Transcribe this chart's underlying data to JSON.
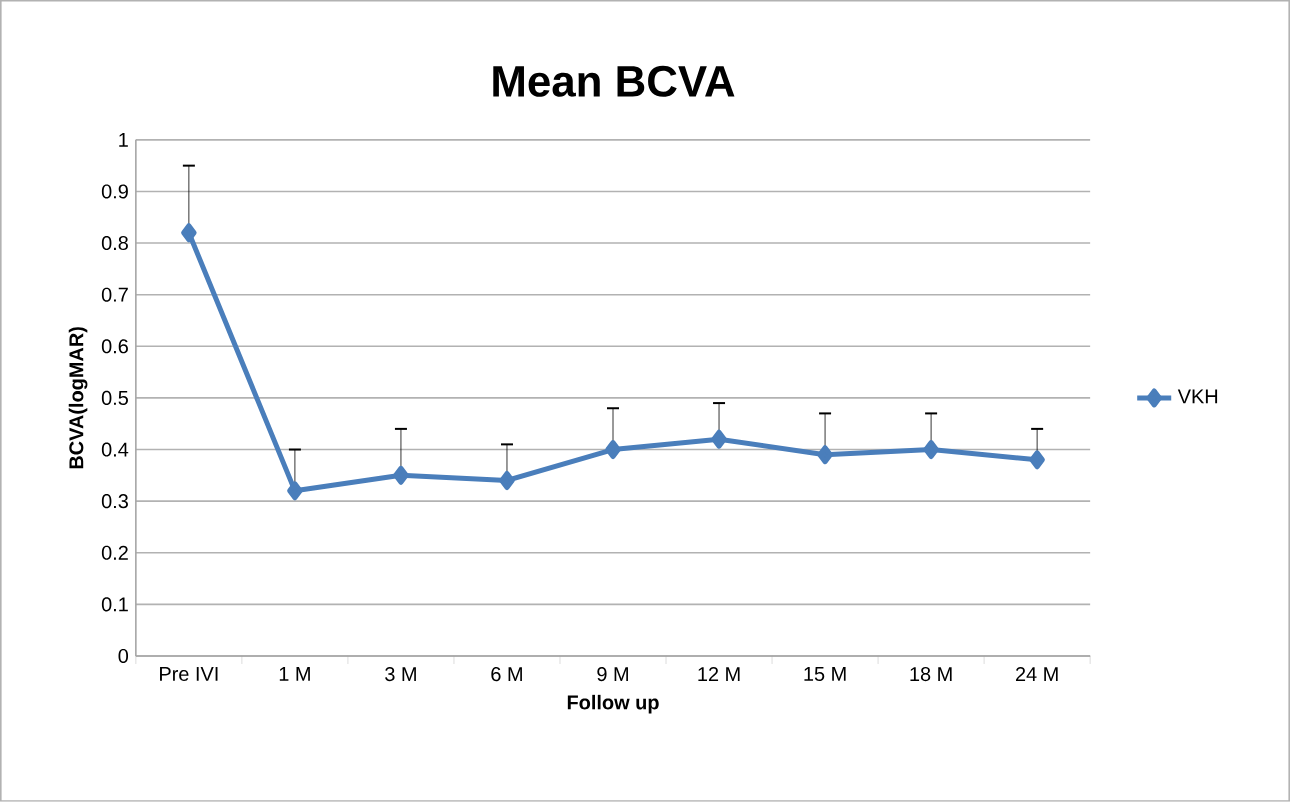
{
  "chart_data": {
    "type": "line",
    "title": "Mean BCVA",
    "xlabel": "Follow up",
    "ylabel": "BCVA(logMAR)",
    "categories": [
      "Pre IVI",
      "1 M",
      "3 M",
      "6 M",
      "9 M",
      "12 M",
      "15 M",
      "18 M",
      "24 M"
    ],
    "series": [
      {
        "name": "VKH",
        "color": "#4a7ebb",
        "values": [
          0.82,
          0.32,
          0.35,
          0.34,
          0.4,
          0.42,
          0.39,
          0.4,
          0.38
        ],
        "errors": [
          [
            0.82,
            0.95
          ],
          [
            0.32,
            0.4
          ],
          [
            0.35,
            0.44
          ],
          [
            0.34,
            0.41
          ],
          [
            0.4,
            0.48
          ],
          [
            0.42,
            0.49
          ],
          [
            0.39,
            0.47
          ],
          [
            0.4,
            0.47
          ],
          [
            0.38,
            0.44
          ]
        ]
      }
    ],
    "ylim": [
      0,
      1
    ],
    "yticks": [
      0,
      0.1,
      0.2,
      0.3,
      0.4,
      0.5,
      0.6,
      0.7,
      0.8,
      0.9,
      1
    ],
    "grid": "y",
    "legend": "right",
    "marker": "diamond",
    "line_style": "solid"
  }
}
